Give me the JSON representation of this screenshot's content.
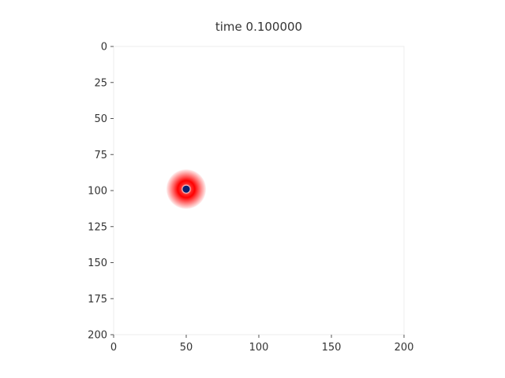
{
  "chart_data": {
    "type": "heatmap",
    "title": "time 0.100000",
    "xlabel": "",
    "ylabel": "",
    "xlim": [
      0,
      200
    ],
    "ylim": [
      200,
      0
    ],
    "x_ticks": [
      0,
      50,
      100,
      150,
      200
    ],
    "y_ticks": [
      0,
      25,
      50,
      75,
      100,
      125,
      150,
      175,
      200
    ],
    "x_tick_labels": [
      "0",
      "50",
      "100",
      "150",
      "200"
    ],
    "y_tick_labels": [
      "0",
      "25",
      "50",
      "75",
      "100",
      "125",
      "150",
      "175",
      "200"
    ],
    "colormap": [
      "#0a1f6e",
      "#ffffff",
      "#ff0000",
      "#ffffff"
    ],
    "background_value": "zero",
    "source": {
      "center_x": 50,
      "center_y": 99,
      "core_radius": 2.5,
      "ring_radius": 14
    },
    "colors": {
      "core": "#0a1f6e",
      "ring": "#ff0000",
      "background": "#ffffff",
      "spine": "#eeeeee",
      "text": "#333333"
    }
  }
}
